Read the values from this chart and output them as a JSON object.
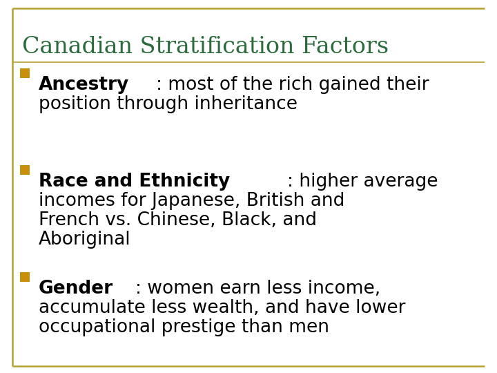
{
  "title": "Canadian Stratification Factors",
  "title_color": "#2D6B3C",
  "background_color": "#FFFFFF",
  "border_color": "#B8A030",
  "bullet_color": "#C8900A",
  "bullet_items": [
    {
      "bold": "Ancestry",
      "rest": ": most of the rich gained their\nposition through inheritance"
    },
    {
      "bold": "Race and Ethnicity",
      "rest": ": higher average\nincomes for Japanese, British and\nFrench vs. Chinese, Black, and\nAboriginal"
    },
    {
      "bold": "Gender",
      "rest": ": women earn less income,\naccumulate less wealth, and have lower\noccupational prestige than men"
    }
  ],
  "title_fontsize": 24,
  "body_fontsize": 19,
  "figsize": [
    7.2,
    5.4
  ],
  "dpi": 100
}
